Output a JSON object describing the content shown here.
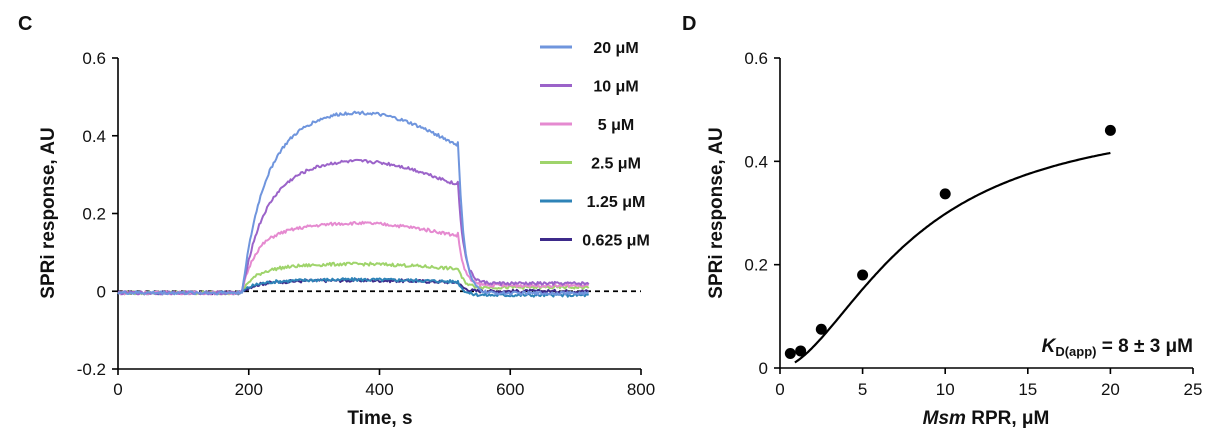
{
  "chart_data": [
    {
      "panel_label": "C",
      "type": "line",
      "xlabel": "Time, s",
      "ylabel": "SPRi response, AU",
      "xlim": [
        0,
        800
      ],
      "ylim": [
        -0.2,
        0.6
      ],
      "xticks": [
        "0",
        "200",
        "400",
        "600",
        "800"
      ],
      "yticks": [
        "-0.2",
        "0",
        "0.2",
        "0.4",
        "0.6"
      ],
      "legend_position": "top-right",
      "baseline": 0,
      "series": [
        {
          "name": "20 μM",
          "color": "#6f95dd",
          "plateau": 0.46,
          "dissoc_level": -0.005
        },
        {
          "name": "10 μM",
          "color": "#9b63c9",
          "plateau": 0.335,
          "dissoc_level": 0.02
        },
        {
          "name": "5 μM",
          "color": "#e58ad0",
          "plateau": 0.175,
          "dissoc_level": 0.015
        },
        {
          "name": "2.5 μM",
          "color": "#9fd46b",
          "plateau": 0.07,
          "dissoc_level": 0.01
        },
        {
          "name": "1.25 μM",
          "color": "#2e83b7",
          "plateau": 0.03,
          "dissoc_level": -0.01
        },
        {
          "name": "0.625 μM",
          "color": "#3d2a8a",
          "plateau": 0.028,
          "dissoc_level": 0.0
        }
      ],
      "association_start": 190,
      "dissociation_start": 520,
      "time_end": 720
    },
    {
      "panel_label": "D",
      "type": "scatter",
      "xlabel_italic": "Msm",
      "xlabel_rest": " RPR, μM",
      "ylabel": "SPRi response, AU",
      "xlim": [
        0,
        25
      ],
      "ylim": [
        0,
        0.6
      ],
      "xticks": [
        "0",
        "5",
        "10",
        "15",
        "20",
        "25"
      ],
      "yticks": [
        "0",
        "0.2",
        "0.4",
        "0.6"
      ],
      "points": [
        {
          "x": 0.625,
          "y": 0.028
        },
        {
          "x": 1.25,
          "y": 0.033
        },
        {
          "x": 2.5,
          "y": 0.075
        },
        {
          "x": 5,
          "y": 0.18
        },
        {
          "x": 10,
          "y": 0.337
        },
        {
          "x": 20,
          "y": 0.46
        }
      ],
      "fit": {
        "type": "hill",
        "bmax": 0.5,
        "kd": 8,
        "n": 1.75
      },
      "annotation_k": "K",
      "annotation_sub": "D(app)",
      "annotation_rest": " = 8 ± 3 μM"
    }
  ]
}
